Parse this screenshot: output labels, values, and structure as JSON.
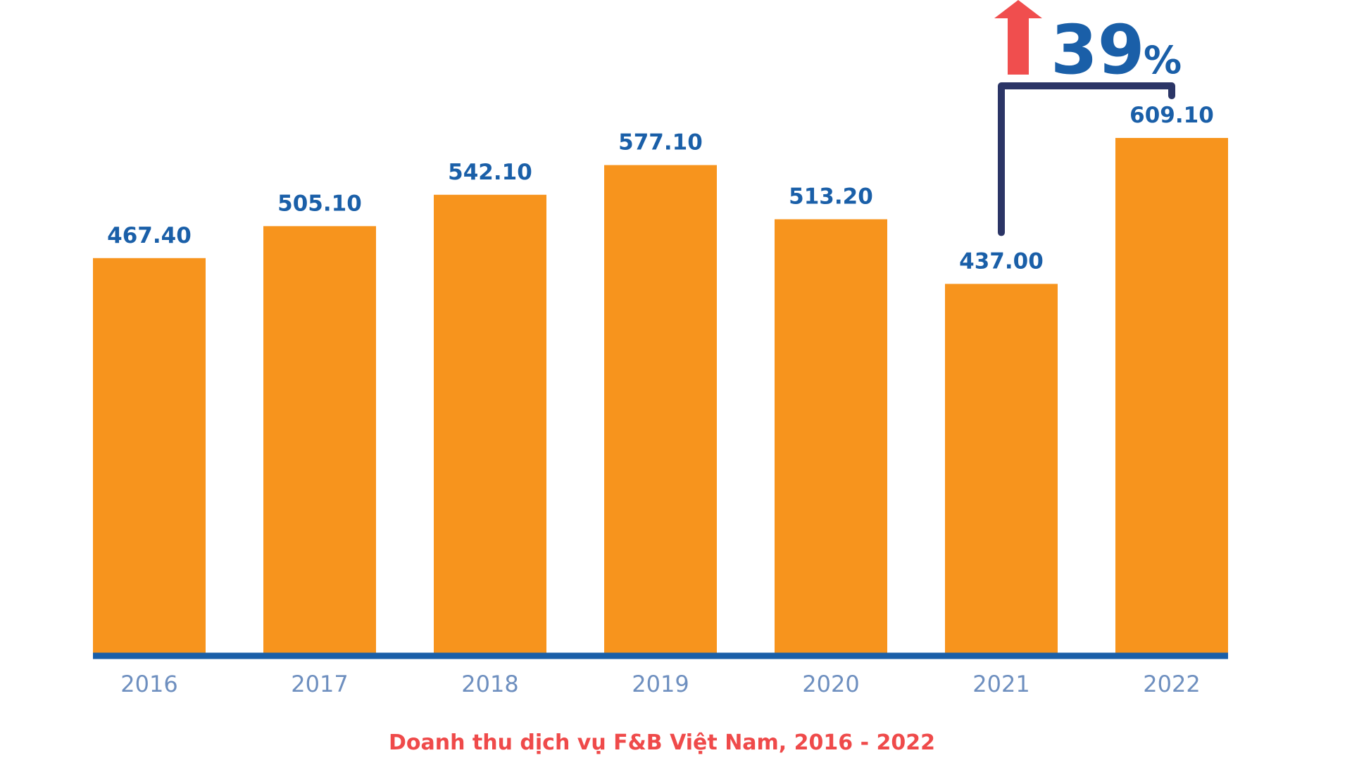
{
  "chart_data": {
    "type": "bar",
    "categories": [
      "2016",
      "2017",
      "2018",
      "2019",
      "2020",
      "2021",
      "2022"
    ],
    "values": [
      467.4,
      505.1,
      542.1,
      577.1,
      513.2,
      437.0,
      609.1
    ],
    "value_labels": [
      "467.40",
      "505.10",
      "542.10",
      "577.10",
      "513.20",
      "437.00",
      "609.10"
    ],
    "caption": "Doanh thu dịch vụ F&B Việt Nam, 2016 - 2022",
    "annotation": {
      "from_category": "2021",
      "to_category": "2022",
      "number": "39",
      "unit": "%",
      "direction": "up"
    },
    "ylim": [
      0,
      650
    ],
    "grid": false
  },
  "colors": {
    "bar": "#F7941D",
    "value_label": "#1A5FA8",
    "axis_line": "#1A5FA8",
    "tick_label": "#6E8FBF",
    "caption": "#EF4A4A",
    "arrow": "#F04E4E",
    "bracket": "#2B3566",
    "growth_text": "#1A5FA8"
  }
}
